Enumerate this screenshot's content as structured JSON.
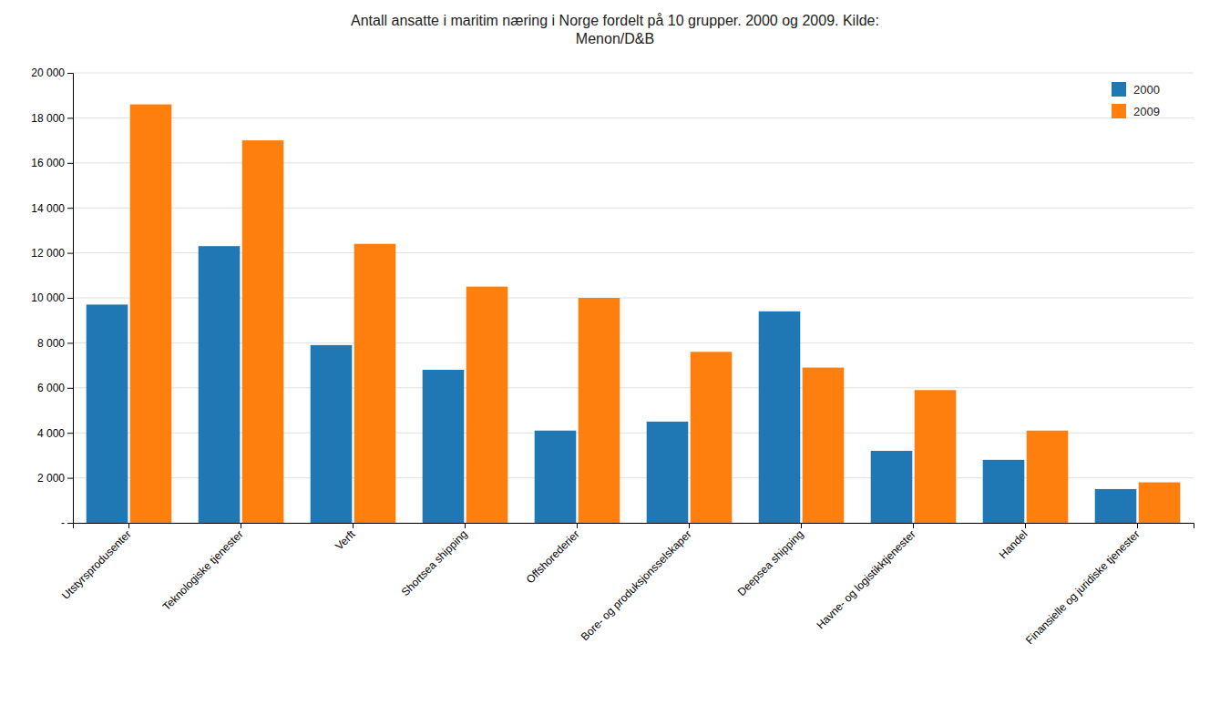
{
  "chart_data": {
    "type": "bar",
    "title": "Antall ansatte i maritim næring i Norge fordelt på 10 grupper. 2000 og 2009. Kilde:\nMenon/D&B",
    "categories": [
      "Utstyrsprodusenter",
      "Teknologiske tjenester",
      "Verft",
      "Shortsea shipping",
      "Offshorederier",
      "Bore- og produksjonsselskaper",
      "Deepsea shipping",
      "Havne- og logistikktjenester",
      "Handel",
      "Finansielle og juridiske tjenester"
    ],
    "series": [
      {
        "name": "2000",
        "values": [
          9700,
          12300,
          7900,
          6800,
          4100,
          4500,
          9400,
          3200,
          2800,
          1500
        ]
      },
      {
        "name": "2009",
        "values": [
          18600,
          17000,
          12400,
          10500,
          10000,
          7600,
          6900,
          5900,
          4100,
          1800
        ]
      }
    ],
    "ylim": [
      0,
      20000
    ],
    "yticks": [
      {
        "value": 0,
        "label": "-"
      },
      {
        "value": 2000,
        "label": "2 000"
      },
      {
        "value": 4000,
        "label": "4 000"
      },
      {
        "value": 6000,
        "label": "6 000"
      },
      {
        "value": 8000,
        "label": "8 000"
      },
      {
        "value": 10000,
        "label": "10 000"
      },
      {
        "value": 12000,
        "label": "12 000"
      },
      {
        "value": 14000,
        "label": "14 000"
      },
      {
        "value": 16000,
        "label": "16 000"
      },
      {
        "value": 18000,
        "label": "18 000"
      },
      {
        "value": 20000,
        "label": "20 000"
      }
    ],
    "grid": true,
    "legend": "upper right"
  }
}
